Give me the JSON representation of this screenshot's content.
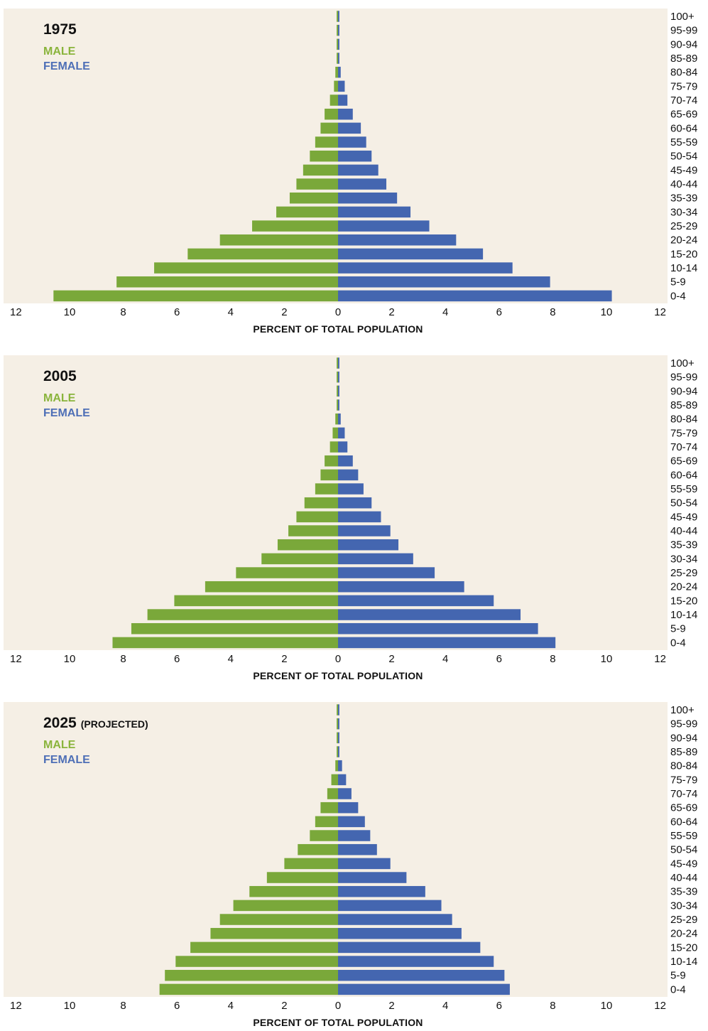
{
  "colors": {
    "male": "#7aa83a",
    "female": "#4466b0",
    "background": "#f5efe5"
  },
  "chart_data": [
    {
      "type": "bar",
      "title": "1975",
      "title_suffix": "",
      "legend": [
        "MALE",
        "FEMALE"
      ],
      "xlabel": "PERCENT OF TOTAL POPULATION",
      "xticks": [
        "12",
        "10",
        "8",
        "6",
        "4",
        "2",
        "0",
        "2",
        "4",
        "6",
        "8",
        "10",
        "12"
      ],
      "xlim": [
        -12,
        12
      ],
      "categories": [
        "100+",
        "95-99",
        "90-94",
        "85-89",
        "80-84",
        "75-79",
        "70-74",
        "65-69",
        "60-64",
        "55-59",
        "50-54",
        "45-49",
        "40-44",
        "35-39",
        "30-34",
        "25-29",
        "20-24",
        "15-20",
        "10-14",
        "5-9",
        "0-4"
      ],
      "series": [
        {
          "name": "MALE",
          "values": [
            0.05,
            0.05,
            0.05,
            0.05,
            0.1,
            0.15,
            0.3,
            0.5,
            0.65,
            0.85,
            1.05,
            1.3,
            1.55,
            1.8,
            2.3,
            3.2,
            4.4,
            5.6,
            6.85,
            8.25,
            10.6
          ]
        },
        {
          "name": "FEMALE",
          "values": [
            0.05,
            0.05,
            0.05,
            0.05,
            0.1,
            0.25,
            0.35,
            0.55,
            0.85,
            1.05,
            1.25,
            1.5,
            1.8,
            2.2,
            2.7,
            3.4,
            4.4,
            5.4,
            6.5,
            7.9,
            10.2
          ]
        }
      ]
    },
    {
      "type": "bar",
      "title": "2005",
      "title_suffix": "",
      "legend": [
        "MALE",
        "FEMALE"
      ],
      "xlabel": "PERCENT OF TOTAL POPULATION",
      "xticks": [
        "12",
        "10",
        "8",
        "6",
        "4",
        "2",
        "0",
        "2",
        "4",
        "6",
        "8",
        "10",
        "12"
      ],
      "xlim": [
        -12,
        12
      ],
      "categories": [
        "100+",
        "95-99",
        "90-94",
        "85-89",
        "80-84",
        "75-79",
        "70-74",
        "65-69",
        "60-64",
        "55-59",
        "50-54",
        "45-49",
        "40-44",
        "35-39",
        "30-34",
        "25-29",
        "20-24",
        "15-20",
        "10-14",
        "5-9",
        "0-4"
      ],
      "series": [
        {
          "name": "MALE",
          "values": [
            0.05,
            0.05,
            0.05,
            0.05,
            0.1,
            0.2,
            0.3,
            0.5,
            0.65,
            0.85,
            1.25,
            1.55,
            1.85,
            2.25,
            2.85,
            3.8,
            4.95,
            6.1,
            7.1,
            7.7,
            8.4
          ]
        },
        {
          "name": "FEMALE",
          "values": [
            0.05,
            0.05,
            0.05,
            0.05,
            0.1,
            0.25,
            0.35,
            0.55,
            0.75,
            0.95,
            1.25,
            1.6,
            1.95,
            2.25,
            2.8,
            3.6,
            4.7,
            5.8,
            6.8,
            7.45,
            8.1
          ]
        }
      ]
    },
    {
      "type": "bar",
      "title": "2025",
      "title_suffix": "(PROJECTED)",
      "legend": [
        "MALE",
        "FEMALE"
      ],
      "xlabel": "PERCENT OF TOTAL POPULATION",
      "xticks": [
        "12",
        "10",
        "8",
        "6",
        "4",
        "2",
        "0",
        "2",
        "4",
        "6",
        "8",
        "10",
        "12"
      ],
      "xlim": [
        -12,
        12
      ],
      "categories": [
        "100+",
        "95-99",
        "90-94",
        "85-89",
        "80-84",
        "75-79",
        "70-74",
        "65-69",
        "60-64",
        "55-59",
        "50-54",
        "45-49",
        "40-44",
        "35-39",
        "30-34",
        "25-29",
        "20-24",
        "15-20",
        "10-14",
        "5-9",
        "0-4"
      ],
      "series": [
        {
          "name": "MALE",
          "values": [
            0.05,
            0.05,
            0.05,
            0.05,
            0.1,
            0.25,
            0.4,
            0.65,
            0.85,
            1.05,
            1.5,
            2.0,
            2.65,
            3.3,
            3.9,
            4.4,
            4.75,
            5.5,
            6.05,
            6.45,
            6.65
          ]
        },
        {
          "name": "FEMALE",
          "values": [
            0.05,
            0.05,
            0.05,
            0.05,
            0.15,
            0.3,
            0.5,
            0.75,
            1.0,
            1.2,
            1.45,
            1.95,
            2.55,
            3.25,
            3.85,
            4.25,
            4.6,
            5.3,
            5.8,
            6.2,
            6.4
          ]
        }
      ]
    }
  ]
}
